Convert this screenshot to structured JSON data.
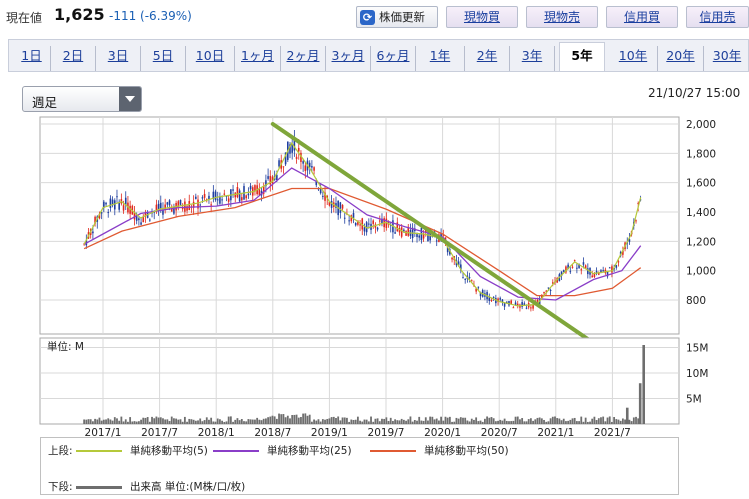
{
  "header": {
    "price_label": "現在値",
    "price_value": "1,625",
    "price_change": "-111 (-6.39%)",
    "refresh_label": "株価更新",
    "trade_buttons": [
      "現物買",
      "現物売",
      "信用買",
      "信用売"
    ]
  },
  "tabs": {
    "items": [
      "1日",
      "2日",
      "3日",
      "5日",
      "10日",
      "1ヶ月",
      "2ヶ月",
      "3ヶ月",
      "6ヶ月",
      "1年",
      "2年",
      "3年",
      "5年",
      "10年",
      "20年",
      "30年"
    ],
    "active": "5年"
  },
  "controls": {
    "period_value": "週足",
    "timestamp": "21/10/27 15:00"
  },
  "legend": {
    "upper_label": "上段:",
    "lower_label": "下段:",
    "ma5_label": "単純移動平均(5)",
    "ma25_label": "単純移動平均(25)",
    "ma50_label": "単純移動平均(50)",
    "volume_label": "出来高 単位:(M株/口/枚)"
  },
  "colors": {
    "up_candle": "#e0271c",
    "down_candle": "#1f3f9f",
    "ma5": "#b5c93a",
    "ma25": "#8a3ec8",
    "ma50": "#e05a32",
    "trendline": "#7fa63a",
    "volume": "#6e6e6e",
    "accent": "#1d3f9a"
  },
  "chart_data": [
    {
      "type": "line",
      "title": "",
      "chart_kind": "weekly candlestick",
      "y_ticks": [
        "2,000",
        "1,800",
        "1,600",
        "1,400",
        "1,200",
        "1,000",
        "800"
      ],
      "ylim": [
        650,
        2050
      ],
      "x_ticks": [
        "2017/1",
        "2017/7",
        "2018/1",
        "2018/7",
        "2019/1",
        "2019/7",
        "2020/1",
        "2020/7",
        "2021/1",
        "2021/7"
      ],
      "grid": true,
      "series": [
        {
          "name": "単純移動平均(5)",
          "values": [
            [
              "2016/11",
              1180
            ],
            [
              "2017/1",
              1430
            ],
            [
              "2017/3",
              1470
            ],
            [
              "2017/5",
              1360
            ],
            [
              "2017/7",
              1420
            ],
            [
              "2017/9",
              1440
            ],
            [
              "2017/11",
              1460
            ],
            [
              "2018/1",
              1500
            ],
            [
              "2018/3",
              1520
            ],
            [
              "2018/5",
              1540
            ],
            [
              "2018/7",
              1610
            ],
            [
              "2018/9",
              1870
            ],
            [
              "2018/11",
              1690
            ],
            [
              "2019/1",
              1470
            ],
            [
              "2019/3",
              1380
            ],
            [
              "2019/5",
              1290
            ],
            [
              "2019/7",
              1330
            ],
            [
              "2019/9",
              1260
            ],
            [
              "2019/11",
              1250
            ],
            [
              "2020/1",
              1220
            ],
            [
              "2020/3",
              1000
            ],
            [
              "2020/5",
              850
            ],
            [
              "2020/7",
              790
            ],
            [
              "2020/9",
              760
            ],
            [
              "2020/11",
              770
            ],
            [
              "2021/1",
              930
            ],
            [
              "2021/3",
              1060
            ],
            [
              "2021/5",
              980
            ],
            [
              "2021/7",
              1000
            ],
            [
              "2021/9",
              1250
            ],
            [
              "2021/10",
              1500
            ]
          ]
        },
        {
          "name": "単純移動平均(25)",
          "values": [
            [
              "2016/11",
              1180
            ],
            [
              "2017/1",
              1250
            ],
            [
              "2017/5",
              1390
            ],
            [
              "2017/9",
              1430
            ],
            [
              "2018/1",
              1440
            ],
            [
              "2018/5",
              1480
            ],
            [
              "2018/9",
              1700
            ],
            [
              "2019/1",
              1560
            ],
            [
              "2019/5",
              1380
            ],
            [
              "2019/9",
              1300
            ],
            [
              "2020/1",
              1230
            ],
            [
              "2020/5",
              960
            ],
            [
              "2020/9",
              820
            ],
            [
              "2021/1",
              800
            ],
            [
              "2021/5",
              940
            ],
            [
              "2021/8",
              1000
            ],
            [
              "2021/10",
              1170
            ]
          ]
        },
        {
          "name": "単純移動平均(50)",
          "values": [
            [
              "2016/11",
              1150
            ],
            [
              "2017/3",
              1270
            ],
            [
              "2017/9",
              1370
            ],
            [
              "2018/3",
              1430
            ],
            [
              "2018/9",
              1560
            ],
            [
              "2019/1",
              1560
            ],
            [
              "2019/7",
              1420
            ],
            [
              "2020/1",
              1250
            ],
            [
              "2020/7",
              1000
            ],
            [
              "2020/11",
              830
            ],
            [
              "2021/3",
              830
            ],
            [
              "2021/7",
              880
            ],
            [
              "2021/10",
              1020
            ]
          ]
        }
      ],
      "trendline": {
        "from": [
          "2018/7",
          2000
        ],
        "to": [
          "2021/9",
          700
        ]
      },
      "price_high_approx": 1990,
      "price_low_approx": 700,
      "last_close": 1625
    },
    {
      "type": "bar",
      "title": "",
      "unit_label": "単位: M",
      "y_ticks": [
        "15M",
        "10M",
        "5M"
      ],
      "ylim": [
        0,
        16
      ],
      "x_ticks": [
        "2017/1",
        "2017/7",
        "2018/1",
        "2018/7",
        "2019/1",
        "2019/7",
        "2020/1",
        "2020/7",
        "2021/1",
        "2021/7"
      ],
      "values_summary": {
        "typical_weekly_volume_M": [
          0.5,
          1.5
        ],
        "late_spike_M": [
          8,
          11,
          15.5
        ]
      }
    }
  ]
}
